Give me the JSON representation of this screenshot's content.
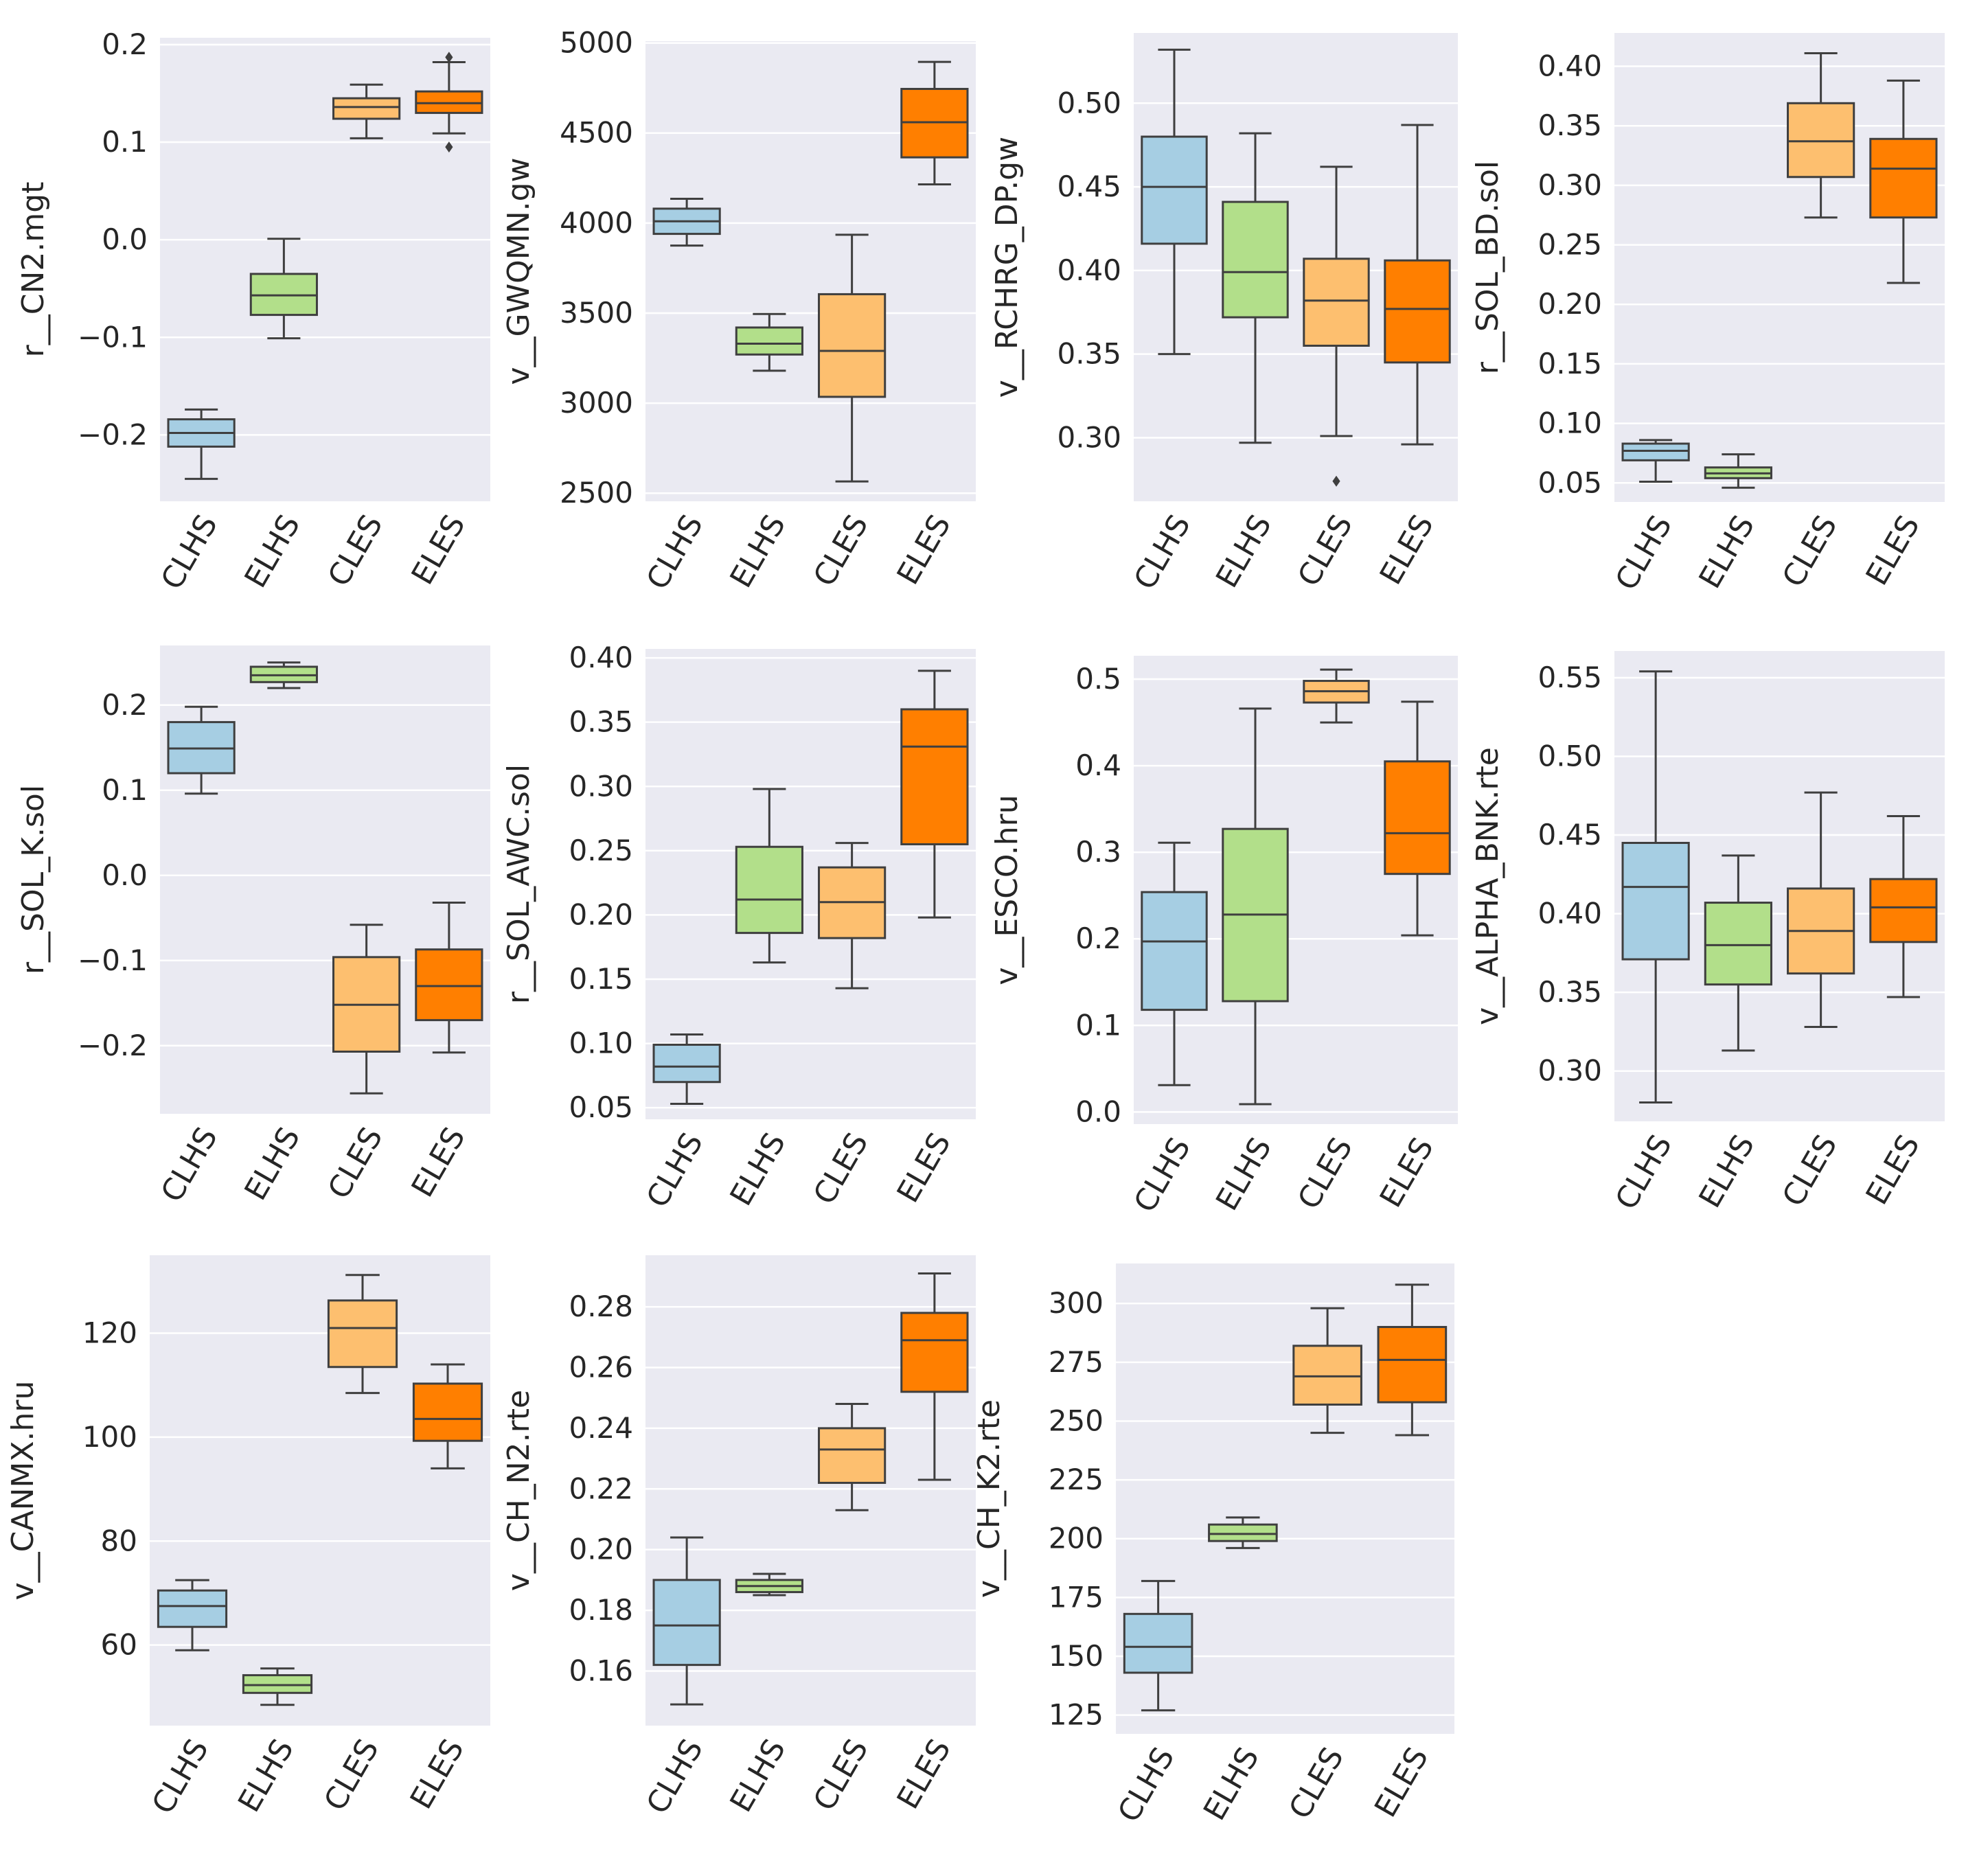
{
  "chart_data": [
    {
      "type": "box",
      "ylabel": "r__CN2.mgt",
      "categories": [
        "CLHS",
        "ELHS",
        "CLES",
        "ELES"
      ],
      "yticks": [
        -0.2,
        -0.1,
        0.0,
        0.1,
        0.2
      ],
      "ytick_labels": [
        "−0.2",
        "−0.1",
        "0.0",
        "0.1",
        "0.2"
      ],
      "ylim": [
        -0.268,
        0.207
      ],
      "boxes": [
        {
          "whislo": -0.245,
          "q1": -0.212,
          "med": -0.198,
          "q3": -0.184,
          "whishi": -0.174,
          "fliers": []
        },
        {
          "whislo": -0.101,
          "q1": -0.077,
          "med": -0.057,
          "q3": -0.035,
          "whishi": 0.001,
          "fliers": []
        },
        {
          "whislo": 0.104,
          "q1": 0.124,
          "med": 0.136,
          "q3": 0.145,
          "whishi": 0.159,
          "fliers": []
        },
        {
          "whislo": 0.109,
          "q1": 0.13,
          "med": 0.14,
          "q3": 0.152,
          "whishi": 0.182,
          "fliers": [
            0.095,
            0.187
          ]
        }
      ]
    },
    {
      "type": "box",
      "ylabel": "v__GWQMN.gw",
      "categories": [
        "CLHS",
        "ELHS",
        "CLES",
        "ELES"
      ],
      "yticks": [
        2500,
        3000,
        3500,
        4000,
        4500,
        5000
      ],
      "ytick_labels": [
        "2500",
        "3000",
        "3500",
        "4000",
        "4500",
        "5000"
      ],
      "ylim": [
        2455,
        5010
      ],
      "boxes": [
        {
          "whislo": 3875,
          "q1": 3940,
          "med": 4010,
          "q3": 4080,
          "whishi": 4135,
          "fliers": []
        },
        {
          "whislo": 3180,
          "q1": 3270,
          "med": 3330,
          "q3": 3420,
          "whishi": 3495,
          "fliers": []
        },
        {
          "whislo": 2565,
          "q1": 3035,
          "med": 3290,
          "q3": 3605,
          "whishi": 3935,
          "fliers": []
        },
        {
          "whislo": 4215,
          "q1": 4365,
          "med": 4560,
          "q3": 4745,
          "whishi": 4895,
          "fliers": []
        }
      ]
    },
    {
      "type": "box",
      "ylabel": "v__RCHRG_DP.gw",
      "categories": [
        "CLHS",
        "ELHS",
        "CLES",
        "ELES"
      ],
      "yticks": [
        0.3,
        0.35,
        0.4,
        0.45,
        0.5
      ],
      "ytick_labels": [
        "0.30",
        "0.35",
        "0.40",
        "0.45",
        "0.50"
      ],
      "ylim": [
        0.262,
        0.542
      ],
      "boxes": [
        {
          "whislo": 0.35,
          "q1": 0.416,
          "med": 0.45,
          "q3": 0.48,
          "whishi": 0.532,
          "fliers": []
        },
        {
          "whislo": 0.297,
          "q1": 0.372,
          "med": 0.399,
          "q3": 0.441,
          "whishi": 0.482,
          "fliers": []
        },
        {
          "whislo": 0.301,
          "q1": 0.355,
          "med": 0.382,
          "q3": 0.407,
          "whishi": 0.462,
          "fliers": [
            0.274
          ]
        },
        {
          "whislo": 0.296,
          "q1": 0.345,
          "med": 0.377,
          "q3": 0.406,
          "whishi": 0.487,
          "fliers": []
        }
      ]
    },
    {
      "type": "box",
      "ylabel": "r__SOL_BD.sol",
      "categories": [
        "CLHS",
        "ELHS",
        "CLES",
        "ELES"
      ],
      "yticks": [
        0.05,
        0.1,
        0.15,
        0.2,
        0.25,
        0.3,
        0.35,
        0.4
      ],
      "ytick_labels": [
        "0.05",
        "0.10",
        "0.15",
        "0.20",
        "0.25",
        "0.30",
        "0.35",
        "0.40"
      ],
      "ylim": [
        0.034,
        0.428
      ],
      "boxes": [
        {
          "whislo": 0.051,
          "q1": 0.069,
          "med": 0.077,
          "q3": 0.083,
          "whishi": 0.086,
          "fliers": []
        },
        {
          "whislo": 0.046,
          "q1": 0.054,
          "med": 0.058,
          "q3": 0.063,
          "whishi": 0.074,
          "fliers": []
        },
        {
          "whislo": 0.273,
          "q1": 0.307,
          "med": 0.337,
          "q3": 0.369,
          "whishi": 0.411,
          "fliers": []
        },
        {
          "whislo": 0.218,
          "q1": 0.273,
          "med": 0.314,
          "q3": 0.339,
          "whishi": 0.388,
          "fliers": []
        }
      ]
    },
    {
      "type": "box",
      "ylabel": "r__SOL_K.sol",
      "categories": [
        "CLHS",
        "ELHS",
        "CLES",
        "ELES"
      ],
      "yticks": [
        -0.2,
        -0.1,
        0.0,
        0.1,
        0.2
      ],
      "ytick_labels": [
        "−0.2",
        "−0.1",
        "0.0",
        "0.1",
        "0.2"
      ],
      "ylim": [
        -0.28,
        0.27
      ],
      "boxes": [
        {
          "whislo": 0.096,
          "q1": 0.12,
          "med": 0.149,
          "q3": 0.18,
          "whishi": 0.198,
          "fliers": []
        },
        {
          "whislo": 0.22,
          "q1": 0.227,
          "med": 0.235,
          "q3": 0.245,
          "whishi": 0.25,
          "fliers": []
        },
        {
          "whislo": -0.256,
          "q1": -0.207,
          "med": -0.152,
          "q3": -0.096,
          "whishi": -0.058,
          "fliers": []
        },
        {
          "whislo": -0.208,
          "q1": -0.17,
          "med": -0.13,
          "q3": -0.087,
          "whishi": -0.032,
          "fliers": []
        }
      ]
    },
    {
      "type": "box",
      "ylabel": "r__SOL_AWC.sol",
      "categories": [
        "CLHS",
        "ELHS",
        "CLES",
        "ELES"
      ],
      "yticks": [
        0.05,
        0.1,
        0.15,
        0.2,
        0.25,
        0.3,
        0.35,
        0.4
      ],
      "ytick_labels": [
        "0.05",
        "0.10",
        "0.15",
        "0.20",
        "0.25",
        "0.30",
        "0.35",
        "0.40"
      ],
      "ylim": [
        0.041,
        0.407
      ],
      "boxes": [
        {
          "whislo": 0.053,
          "q1": 0.07,
          "med": 0.082,
          "q3": 0.099,
          "whishi": 0.107,
          "fliers": []
        },
        {
          "whislo": 0.163,
          "q1": 0.186,
          "med": 0.212,
          "q3": 0.253,
          "whishi": 0.298,
          "fliers": []
        },
        {
          "whislo": 0.143,
          "q1": 0.182,
          "med": 0.21,
          "q3": 0.237,
          "whishi": 0.256,
          "fliers": []
        },
        {
          "whislo": 0.198,
          "q1": 0.255,
          "med": 0.331,
          "q3": 0.36,
          "whishi": 0.39,
          "fliers": []
        }
      ]
    },
    {
      "type": "box",
      "ylabel": "v__ESCO.hru",
      "categories": [
        "CLHS",
        "ELHS",
        "CLES",
        "ELES"
      ],
      "yticks": [
        0.0,
        0.1,
        0.2,
        0.3,
        0.4,
        0.5
      ],
      "ytick_labels": [
        "0.0",
        "0.1",
        "0.2",
        "0.3",
        "0.4",
        "0.5"
      ],
      "ylim": [
        -0.014,
        0.527
      ],
      "boxes": [
        {
          "whislo": 0.031,
          "q1": 0.118,
          "med": 0.197,
          "q3": 0.254,
          "whishi": 0.311,
          "fliers": []
        },
        {
          "whislo": 0.009,
          "q1": 0.128,
          "med": 0.228,
          "q3": 0.327,
          "whishi": 0.466,
          "fliers": []
        },
        {
          "whislo": 0.45,
          "q1": 0.473,
          "med": 0.486,
          "q3": 0.498,
          "whishi": 0.511,
          "fliers": []
        },
        {
          "whislo": 0.204,
          "q1": 0.275,
          "med": 0.322,
          "q3": 0.405,
          "whishi": 0.474,
          "fliers": []
        }
      ]
    },
    {
      "type": "box",
      "ylabel": "v__ALPHA_BNK.rte",
      "categories": [
        "CLHS",
        "ELHS",
        "CLES",
        "ELES"
      ],
      "yticks": [
        0.3,
        0.35,
        0.4,
        0.45,
        0.5,
        0.55
      ],
      "ytick_labels": [
        "0.30",
        "0.35",
        "0.40",
        "0.45",
        "0.50",
        "0.55"
      ],
      "ylim": [
        0.268,
        0.567
      ],
      "boxes": [
        {
          "whislo": 0.28,
          "q1": 0.371,
          "med": 0.417,
          "q3": 0.445,
          "whishi": 0.554,
          "fliers": []
        },
        {
          "whislo": 0.313,
          "q1": 0.355,
          "med": 0.38,
          "q3": 0.407,
          "whishi": 0.437,
          "fliers": []
        },
        {
          "whislo": 0.328,
          "q1": 0.362,
          "med": 0.389,
          "q3": 0.416,
          "whishi": 0.477,
          "fliers": []
        },
        {
          "whislo": 0.347,
          "q1": 0.382,
          "med": 0.404,
          "q3": 0.422,
          "whishi": 0.462,
          "fliers": []
        }
      ]
    },
    {
      "type": "box",
      "ylabel": "v__CANMX.hru",
      "categories": [
        "CLHS",
        "ELHS",
        "CLES",
        "ELES"
      ],
      "yticks": [
        60,
        80,
        100,
        120
      ],
      "ytick_labels": [
        "60",
        "80",
        "100",
        "120"
      ],
      "ylim": [
        44.5,
        135
      ],
      "boxes": [
        {
          "whislo": 59.0,
          "q1": 63.5,
          "med": 67.5,
          "q3": 70.5,
          "whishi": 72.5,
          "fliers": []
        },
        {
          "whislo": 48.5,
          "q1": 50.8,
          "med": 52.3,
          "q3": 54.2,
          "whishi": 55.5,
          "fliers": []
        },
        {
          "whislo": 108.5,
          "q1": 113.5,
          "med": 121.0,
          "q3": 126.3,
          "whishi": 131.2,
          "fliers": []
        },
        {
          "whislo": 94.0,
          "q1": 99.3,
          "med": 103.5,
          "q3": 110.3,
          "whishi": 114.0,
          "fliers": []
        }
      ]
    },
    {
      "type": "box",
      "ylabel": "v__CH_N2.rte",
      "categories": [
        "CLHS",
        "ELHS",
        "CLES",
        "ELES"
      ],
      "yticks": [
        0.16,
        0.18,
        0.2,
        0.22,
        0.24,
        0.26,
        0.28
      ],
      "ytick_labels": [
        "0.16",
        "0.18",
        "0.20",
        "0.22",
        "0.24",
        "0.26",
        "0.28"
      ],
      "ylim": [
        0.142,
        0.297
      ],
      "boxes": [
        {
          "whislo": 0.149,
          "q1": 0.162,
          "med": 0.175,
          "q3": 0.19,
          "whishi": 0.204,
          "fliers": []
        },
        {
          "whislo": 0.185,
          "q1": 0.186,
          "med": 0.188,
          "q3": 0.19,
          "whishi": 0.192,
          "fliers": []
        },
        {
          "whislo": 0.213,
          "q1": 0.222,
          "med": 0.233,
          "q3": 0.24,
          "whishi": 0.248,
          "fliers": []
        },
        {
          "whislo": 0.223,
          "q1": 0.252,
          "med": 0.269,
          "q3": 0.278,
          "whishi": 0.291,
          "fliers": []
        }
      ]
    },
    {
      "type": "box",
      "ylabel": "v__CH_K2.rte",
      "categories": [
        "CLHS",
        "ELHS",
        "CLES",
        "ELES"
      ],
      "yticks": [
        125,
        150,
        175,
        200,
        225,
        250,
        275,
        300
      ],
      "ytick_labels": [
        "125",
        "150",
        "175",
        "200",
        "225",
        "250",
        "275",
        "300"
      ],
      "ylim": [
        117,
        317
      ],
      "boxes": [
        {
          "whislo": 127,
          "q1": 143,
          "med": 154,
          "q3": 168,
          "whishi": 182,
          "fliers": []
        },
        {
          "whislo": 196,
          "q1": 199,
          "med": 202,
          "q3": 206,
          "whishi": 209,
          "fliers": []
        },
        {
          "whislo": 245,
          "q1": 257,
          "med": 269,
          "q3": 282,
          "whishi": 298,
          "fliers": []
        },
        {
          "whislo": 244,
          "q1": 258,
          "med": 276,
          "q3": 290,
          "whishi": 308,
          "fliers": []
        }
      ]
    }
  ],
  "colors": {
    "background": "#eaeaf2",
    "grid": "#ffffff",
    "line": "#3f3f3f",
    "series": [
      "#a6cee3",
      "#b2df8a",
      "#fdbf6f",
      "#ff7f00"
    ]
  }
}
